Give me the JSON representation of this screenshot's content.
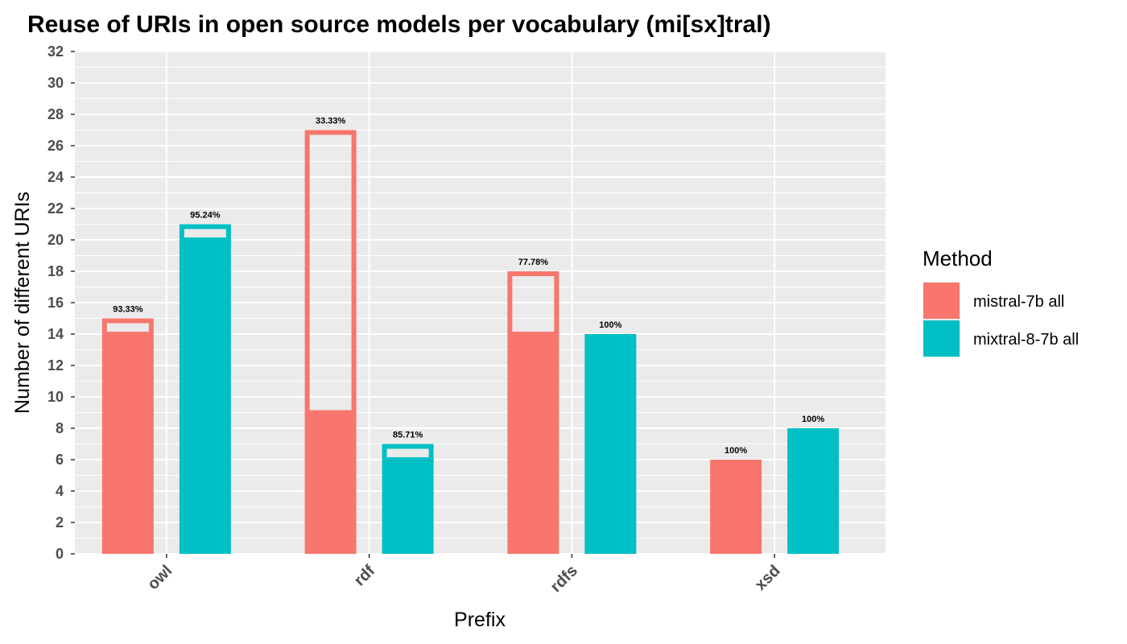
{
  "chart_data": {
    "type": "bar",
    "title": "Reuse of URIs in open source models per vocabulary (mi[sx]tral)",
    "xlabel": "Prefix",
    "ylabel": "Number of different URIs",
    "categories": [
      "owl",
      "rdf",
      "rdfs",
      "xsd"
    ],
    "ylim": [
      0,
      32
    ],
    "yticks": [
      0,
      2,
      4,
      6,
      8,
      10,
      12,
      14,
      16,
      18,
      20,
      22,
      24,
      26,
      28,
      30,
      32
    ],
    "grid": true,
    "legend": {
      "title": "Method",
      "placement": "right"
    },
    "series": [
      {
        "name": "mistral-7b all",
        "color": "#F8766D",
        "total": [
          15,
          27,
          18,
          6
        ],
        "reused": [
          14,
          9,
          14,
          6
        ],
        "labels": [
          "93.33%",
          "33.33%",
          "77.78%",
          "100%"
        ]
      },
      {
        "name": "mixtral-8-7b all",
        "color": "#00BFC4",
        "total": [
          21,
          7,
          14,
          8
        ],
        "reused": [
          20,
          6,
          14,
          8
        ],
        "labels": [
          "95.24%",
          "85.71%",
          "100%",
          "100%"
        ]
      }
    ]
  }
}
